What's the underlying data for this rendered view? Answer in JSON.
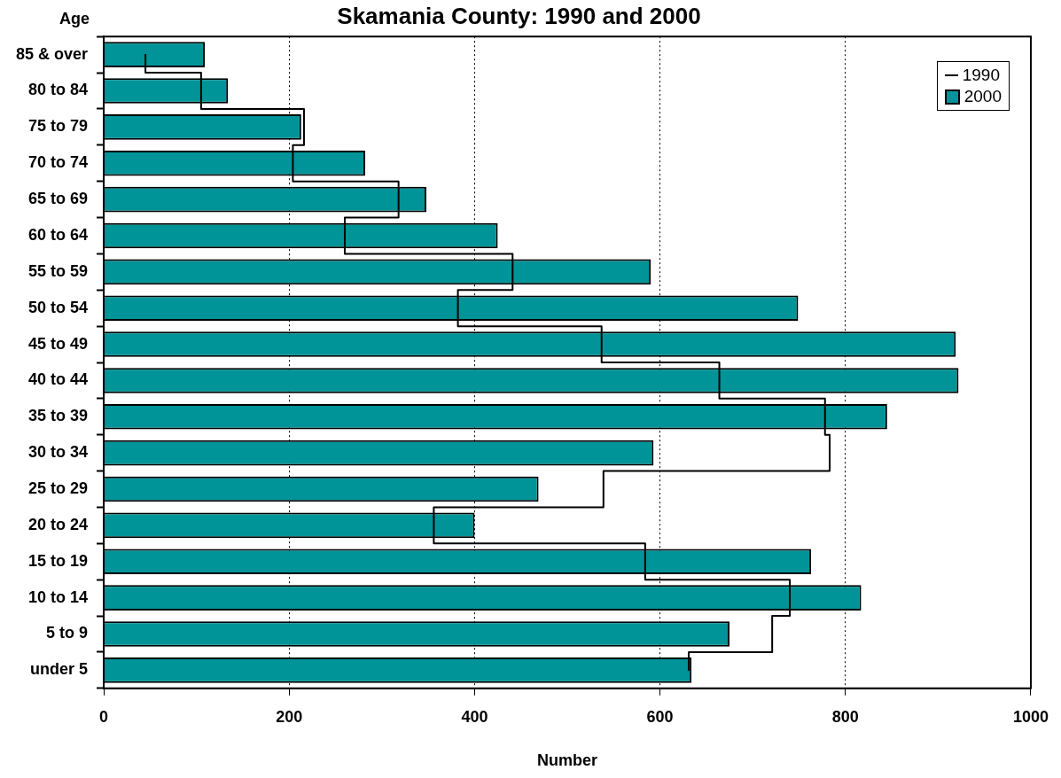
{
  "chart_data": {
    "type": "bar",
    "orientation": "horizontal",
    "title": "Skamania County: 1990 and 2000",
    "xlabel": "Number",
    "ylabel": "Age",
    "categories": [
      "85 & over",
      "80 to 84",
      "75 to 79",
      "70 to 74",
      "65 to 69",
      "60 to 64",
      "55 to 59",
      "50 to 54",
      "45 to 49",
      "40 to 44",
      "35 to 39",
      "30 to 34",
      "25 to 29",
      "20 to 24",
      "15 to 19",
      "10 to 14",
      "5 to 9",
      "under 5"
    ],
    "series": [
      {
        "name": "1990",
        "type": "step",
        "color": "#000000",
        "values": [
          45,
          105,
          216,
          204,
          318,
          260,
          441,
          382,
          537,
          664,
          778,
          783,
          539,
          356,
          584,
          740,
          721,
          631
        ]
      },
      {
        "name": "2000",
        "color": "#009499",
        "values": [
          109,
          134,
          213,
          282,
          348,
          425,
          590,
          749,
          919,
          922,
          845,
          593,
          469,
          400,
          763,
          817,
          675,
          634
        ]
      }
    ],
    "xlim": [
      0,
      1000
    ],
    "xticks": [
      0,
      200,
      400,
      600,
      800,
      1000
    ],
    "grid": "x",
    "legend": "top right"
  }
}
